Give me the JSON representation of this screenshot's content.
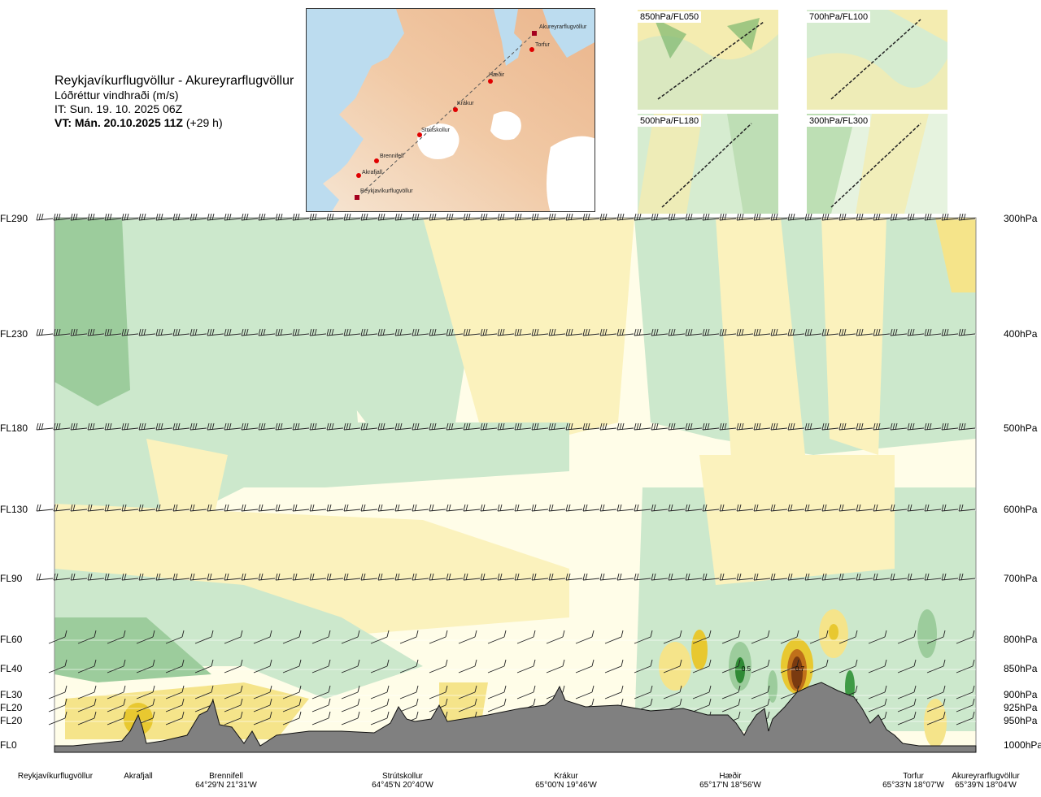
{
  "header": {
    "route": "Reykjavíkurflugvöllur - Akureyrarflugvöllur",
    "variable": "Lóðréttur vindhraði (m/s)",
    "init_time": "IT: Sun. 19. 10. 2025 06Z",
    "valid_prefix": "VT: Mán. 20.10.2025 11Z",
    "valid_suffix": "(+29 h)"
  },
  "route_map": {
    "stations": [
      "Akureyrarflugvöllur",
      "Torfur",
      "Hæðir",
      "Krákur",
      "Strútskollur",
      "Brennifell",
      "Akrafjall",
      "Reykjavíkurflugvöllur"
    ]
  },
  "mini_maps": [
    "850hPa/FL050",
    "700hPa/FL100",
    "500hPa/FL180",
    "300hPa/FL300"
  ],
  "chart_data": {
    "type": "heatmap",
    "title": "Lóðréttur vindhraði (m/s)",
    "levels": [
      {
        "fl": "FL290",
        "hpa": "300hPa"
      },
      {
        "fl": "FL230",
        "hpa": "400hPa"
      },
      {
        "fl": "FL180",
        "hpa": "500hPa"
      },
      {
        "fl": "FL130",
        "hpa": "600hPa"
      },
      {
        "fl": "FL90",
        "hpa": "700hPa"
      },
      {
        "fl": "FL60",
        "hpa": "800hPa"
      },
      {
        "fl": "FL40",
        "hpa": "850hPa"
      },
      {
        "fl": "FL30",
        "hpa": "900hPa"
      },
      {
        "fl": "FL20",
        "hpa": "925hPa"
      },
      {
        "fl": "FL20",
        "hpa": "950hPa"
      },
      {
        "fl": "FL0",
        "hpa": "1000hPa"
      }
    ],
    "stations": [
      {
        "name": "Reykjavíkurflugvöllur",
        "coord": ""
      },
      {
        "name": "Akrafjall",
        "coord": ""
      },
      {
        "name": "Brennifell",
        "coord": "64°29'N 21°31'W"
      },
      {
        "name": "Strútskollur",
        "coord": "64°45'N 20°40'W"
      },
      {
        "name": "Krákur",
        "coord": "65°00'N 19°46'W"
      },
      {
        "name": "Hæðir",
        "coord": "65°17'N 18°56'W"
      },
      {
        "name": "Torfur",
        "coord": "65°33'N 18°07'W"
      },
      {
        "name": "Akureyrarflugvöllur",
        "coord": "65°39'N 18°04'W"
      }
    ],
    "annotations": [
      "0.5",
      "0.7"
    ],
    "colors": {
      "strong_down": "#9ccc9c",
      "down": "#cce8cc",
      "weak_down": "#e4f4e0",
      "neutral": "#fffde8",
      "weak_up": "#fbf2bd",
      "up": "#f5e48a",
      "strong_up": "#e8c830",
      "very_strong_up": "#7a3a10",
      "terrain": "#808080"
    }
  }
}
